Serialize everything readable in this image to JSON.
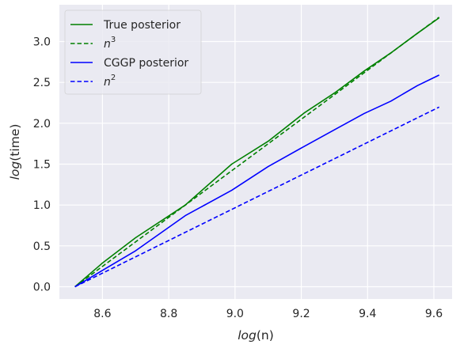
{
  "chart_data": {
    "type": "line",
    "xlabel": {
      "italic": "log",
      "rest": "(n)"
    },
    "ylabel": {
      "italic": "log",
      "rest": "(time)"
    },
    "xlim": [
      8.47,
      9.655
    ],
    "ylim": [
      -0.15,
      3.45
    ],
    "xticks": [
      8.6,
      8.8,
      9.0,
      9.2,
      9.4,
      9.6
    ],
    "yticks": [
      0.0,
      0.5,
      1.0,
      1.5,
      2.0,
      2.5,
      3.0
    ],
    "grid": true,
    "background": "#eaeaf2",
    "legend_position": "top-left",
    "series": [
      {
        "name": "True posterior",
        "label_parts": {
          "base": "True posterior",
          "sup": ""
        },
        "color": "#008000",
        "dash": "solid",
        "x": [
          8.517,
          8.6,
          8.7,
          8.85,
          8.99,
          9.1,
          9.21,
          9.3,
          9.39,
          9.47,
          9.55,
          9.616
        ],
        "y": [
          0.0,
          0.29,
          0.6,
          1.0,
          1.5,
          1.78,
          2.13,
          2.37,
          2.64,
          2.86,
          3.1,
          3.29
        ]
      },
      {
        "name": "n3",
        "label_parts": {
          "base": "n",
          "sup": "3"
        },
        "color": "#008000",
        "dash": "dashed",
        "x": [
          8.517,
          9.616
        ],
        "y": [
          0.0,
          3.297
        ]
      },
      {
        "name": "CGGP posterior",
        "label_parts": {
          "base": "CGGP posterior",
          "sup": ""
        },
        "color": "#0000ff",
        "dash": "solid",
        "x": [
          8.517,
          8.6,
          8.7,
          8.85,
          8.99,
          9.1,
          9.21,
          9.3,
          9.39,
          9.47,
          9.55,
          9.616
        ],
        "y": [
          0.0,
          0.2,
          0.44,
          0.87,
          1.18,
          1.47,
          1.72,
          1.92,
          2.12,
          2.27,
          2.46,
          2.59
        ]
      },
      {
        "name": "n2",
        "label_parts": {
          "base": "n",
          "sup": "2"
        },
        "color": "#0000ff",
        "dash": "dashed",
        "x": [
          8.517,
          9.616
        ],
        "y": [
          0.0,
          2.198
        ]
      }
    ]
  }
}
